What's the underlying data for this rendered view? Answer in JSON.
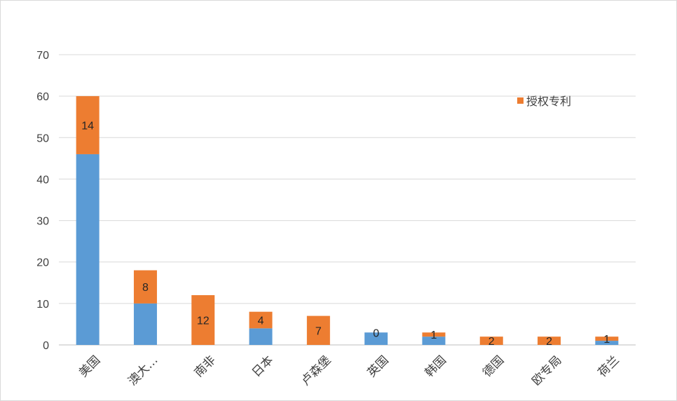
{
  "chart_data": {
    "type": "bar",
    "stacked": true,
    "categories": [
      "美国",
      "澳大…",
      "南非",
      "日本",
      "卢森堡",
      "英国",
      "韩国",
      "德国",
      "欧专局",
      "荷兰"
    ],
    "series": [
      {
        "values": [
          46,
          10,
          0,
          4,
          0,
          3,
          2,
          0,
          0,
          1
        ],
        "color": "#5b9bd5"
      },
      {
        "name": "授权专利",
        "values": [
          14,
          8,
          12,
          4,
          7,
          0,
          1,
          2,
          2,
          1
        ],
        "color": "#ed7d31"
      }
    ],
    "data_labels": [
      "14",
      "8",
      "12",
      "4",
      "7",
      "0",
      "1",
      "2",
      "2",
      "1"
    ],
    "yticks": [
      "0",
      "10",
      "20",
      "30",
      "40",
      "50",
      "60",
      "70"
    ],
    "ylim": [
      0,
      70
    ],
    "grid": true,
    "legend_position": "top-right",
    "xlabel": "",
    "ylabel": ""
  }
}
